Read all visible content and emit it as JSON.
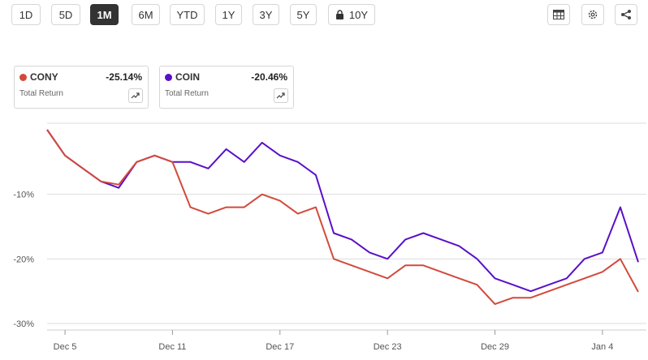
{
  "range_buttons": [
    {
      "label": "1D",
      "active": false
    },
    {
      "label": "5D",
      "active": false
    },
    {
      "label": "1M",
      "active": true
    },
    {
      "label": "6M",
      "active": false
    },
    {
      "label": "YTD",
      "active": false
    },
    {
      "label": "1Y",
      "active": false
    },
    {
      "label": "3Y",
      "active": false
    },
    {
      "label": "5Y",
      "active": false
    },
    {
      "label": "10Y",
      "active": false,
      "locked": true
    }
  ],
  "toolbar": {
    "icons": [
      "table-icon",
      "gear-icon",
      "share-icon"
    ]
  },
  "legend_cards": [
    {
      "symbol": "CONY",
      "value": "-25.14%",
      "subtitle": "Total Return",
      "color": "#d24a3b"
    },
    {
      "symbol": "COIN",
      "value": "-20.46%",
      "subtitle": "Total Return",
      "color": "#5a10c8"
    }
  ],
  "colors": {
    "cony": "#d24a3b",
    "coin": "#5a10c8",
    "grid": "#dddddd",
    "active_button": "#333333"
  },
  "chart_data": {
    "type": "line",
    "title": "",
    "xlabel": "",
    "ylabel": "",
    "y_tick_labels": [
      "-10%",
      "-20%",
      "-30%"
    ],
    "y_ticks": [
      -10,
      -20,
      -30
    ],
    "ylim": [
      -31,
      1
    ],
    "x_tick_labels": [
      "Dec 5",
      "Dec 11",
      "Dec 17",
      "Dec 23",
      "Dec 29",
      "Jan 4"
    ],
    "x_ticks": [
      "2023-12-05",
      "2023-12-11",
      "2023-12-17",
      "2023-12-23",
      "2023-12-29",
      "2024-01-04"
    ],
    "xlim": [
      "2023-12-04",
      "2024-01-06"
    ],
    "grid": "horizontal",
    "legend_placement": "top-left",
    "series": [
      {
        "name": "COIN",
        "x": [
          "2023-12-04",
          "2023-12-05",
          "2023-12-06",
          "2023-12-07",
          "2023-12-08",
          "2023-12-09",
          "2023-12-10",
          "2023-12-11",
          "2023-12-12",
          "2023-12-13",
          "2023-12-14",
          "2023-12-15",
          "2023-12-16",
          "2023-12-17",
          "2023-12-18",
          "2023-12-19",
          "2023-12-20",
          "2023-12-21",
          "2023-12-22",
          "2023-12-23",
          "2023-12-24",
          "2023-12-25",
          "2023-12-26",
          "2023-12-27",
          "2023-12-28",
          "2023-12-29",
          "2023-12-30",
          "2023-12-31",
          "2024-01-01",
          "2024-01-02",
          "2024-01-03",
          "2024-01-04",
          "2024-01-05",
          "2024-01-06"
        ],
        "y": [
          0,
          -4,
          -6,
          -8,
          -9,
          -5,
          -4,
          -5,
          -5,
          -6,
          -3,
          -5,
          -2,
          -4,
          -5,
          -7,
          -16,
          -17,
          -19,
          -20,
          -17,
          -16,
          -17,
          -18,
          -20,
          -23,
          -24,
          -25,
          -24,
          -23,
          -20,
          -19,
          -12,
          -20.5
        ]
      },
      {
        "name": "CONY",
        "x": [
          "2023-12-04",
          "2023-12-05",
          "2023-12-06",
          "2023-12-07",
          "2023-12-08",
          "2023-12-09",
          "2023-12-10",
          "2023-12-11",
          "2023-12-12",
          "2023-12-13",
          "2023-12-14",
          "2023-12-15",
          "2023-12-16",
          "2023-12-17",
          "2023-12-18",
          "2023-12-19",
          "2023-12-20",
          "2023-12-21",
          "2023-12-22",
          "2023-12-23",
          "2023-12-24",
          "2023-12-25",
          "2023-12-26",
          "2023-12-27",
          "2023-12-28",
          "2023-12-29",
          "2023-12-30",
          "2023-12-31",
          "2024-01-01",
          "2024-01-02",
          "2024-01-03",
          "2024-01-04",
          "2024-01-05",
          "2024-01-06"
        ],
        "y": [
          0,
          -4,
          -6,
          -8,
          -8.5,
          -5,
          -4,
          -5,
          -12,
          -13,
          -12,
          -12,
          -10,
          -11,
          -13,
          -12,
          -20,
          -21,
          -22,
          -23,
          -21,
          -21,
          -22,
          -23,
          -24,
          -27,
          -26,
          -26,
          -25,
          -24,
          -23,
          -22,
          -20,
          -25.1
        ]
      }
    ]
  }
}
